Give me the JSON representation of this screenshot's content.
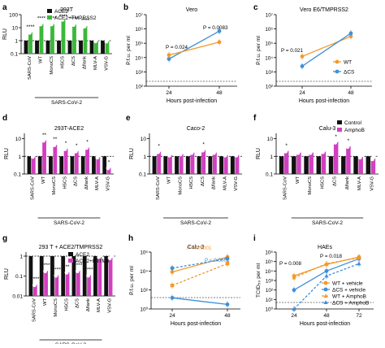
{
  "colors": {
    "green": "#3cb83a",
    "pink": "#d23fc0",
    "orange": "#f39a2b",
    "blue": "#3f8fd8",
    "black": "#111111",
    "white": "#ffffff"
  },
  "chart_data": [
    {
      "id": "a",
      "type": "bar",
      "title": "293T",
      "ylabel": "RLU",
      "scale": "log",
      "ylim": [
        0.1,
        100
      ],
      "yticks": [
        "0.1",
        "1",
        "10",
        "100"
      ],
      "group_label": "SARS-CoV-2",
      "group_range": [
        1,
        6
      ],
      "categories": [
        "SARS-CoV",
        "WT",
        "MonoCS",
        "H5CS",
        "ΔCS",
        "Δflank",
        "MLV-A",
        "VSV-G"
      ],
      "series": [
        {
          "name": "ACE2",
          "values": [
            1,
            1,
            1,
            1,
            1,
            1,
            1,
            1
          ]
        },
        {
          "name": "ACE2+TMPRSS2",
          "values": [
            5,
            22,
            22,
            50,
            20,
            15,
            1.1,
            1.05
          ]
        }
      ],
      "annotations": [
        "****",
        "****",
        "****",
        "****",
        "****",
        "****",
        "",
        ""
      ]
    },
    {
      "id": "b",
      "type": "line",
      "title": "Vero",
      "ylabel": "P.f.u. per ml",
      "xlabel": "Hours post-infection",
      "scale": "log",
      "ylim": [
        100,
        10000000
      ],
      "yticks": [
        "10²",
        "10³",
        "10⁴",
        "10⁵",
        "10⁶",
        "10⁷"
      ],
      "x": [
        24,
        48
      ],
      "series": [
        {
          "values": [
            8000,
            700000
          ]
        },
        {
          "values": [
            15000,
            120000
          ]
        }
      ],
      "pvalues": [
        "P = 0.024",
        "P = 0.0083"
      ]
    },
    {
      "id": "c",
      "type": "line",
      "title": "Vero E6/TMPRSS2",
      "ylabel": "P.f.u. per ml",
      "xlabel": "Hours post-infection",
      "scale": "log",
      "ylim": [
        100,
        10000000
      ],
      "yticks": [
        "10²",
        "10³",
        "10⁴",
        "10⁵",
        "10⁶",
        "10⁷"
      ],
      "x": [
        24,
        48
      ],
      "series": [
        {
          "name": "WT",
          "values": [
            12000,
            300000
          ]
        },
        {
          "name": "ΔCS",
          "values": [
            2500,
            500000
          ]
        }
      ],
      "pvalues": [
        "P = 0.021",
        ""
      ]
    },
    {
      "id": "d",
      "type": "bar",
      "title": "293T-ACE2",
      "ylabel": "RLU",
      "scale": "log",
      "ylim": [
        0.1,
        20
      ],
      "yticks": [
        "0.1",
        "1",
        "10"
      ],
      "group_label": "SARS-CoV-2",
      "group_range": [
        1,
        6
      ],
      "categories": [
        "SARS-CoV",
        "WT",
        "MonoCS",
        "H5CS",
        "ΔCS",
        "Δflank",
        "MLV-A",
        "VSV-G"
      ],
      "series": [
        {
          "values": [
            1,
            1,
            1,
            1,
            1,
            1,
            1,
            1
          ]
        },
        {
          "values": [
            1.1,
            9,
            5,
            3,
            2.2,
            3.5,
            1,
            0.25
          ]
        }
      ],
      "annotations": [
        "",
        "**",
        "**",
        "*",
        "*",
        "*",
        "",
        "*"
      ]
    },
    {
      "id": "e",
      "type": "bar",
      "title": "Caco-2",
      "ylabel": "RLU",
      "scale": "log",
      "ylim": [
        0.1,
        20
      ],
      "yticks": [
        "0.1",
        "1",
        "10"
      ],
      "group_label": "SARS-CoV-2",
      "group_range": [
        1,
        6
      ],
      "categories": [
        "SARS-CoV",
        "WT",
        "MonoCS",
        "H5CS",
        "ΔCS",
        "Δflank",
        "MLV-A",
        "VSV-G"
      ],
      "series": [
        {
          "values": [
            1,
            1,
            1,
            1,
            1,
            1,
            1,
            1
          ]
        },
        {
          "values": [
            2,
            1.3,
            1.5,
            1.8,
            2.5,
            1.8,
            1.3,
            1.3
          ]
        }
      ],
      "annotations": [
        "*",
        "",
        "",
        "",
        "*",
        "",
        "",
        ""
      ]
    },
    {
      "id": "f",
      "type": "bar",
      "title": "Calu-3",
      "ylabel": "RLU",
      "scale": "log",
      "ylim": [
        0.1,
        20
      ],
      "yticks": [
        "0.1",
        "1",
        "10"
      ],
      "group_label": "SARS-CoV-2",
      "group_range": [
        1,
        6
      ],
      "categories": [
        "SARS-CoV",
        "WT",
        "MonoCS",
        "H5CS",
        "ΔCS",
        "Δflank",
        "MLV-A",
        "VSV-G"
      ],
      "series": [
        {
          "name": "Control",
          "values": [
            1,
            1,
            1,
            1,
            1,
            1,
            1,
            1
          ]
        },
        {
          "name": "AmphoB",
          "values": [
            2.2,
            1.8,
            1.8,
            2,
            7,
            4,
            1,
            0.8
          ]
        }
      ],
      "annotations": [
        "*",
        "",
        "",
        "",
        "*",
        "*",
        "",
        ""
      ]
    },
    {
      "id": "g",
      "type": "bar",
      "title": "293 T + ACE2/TMPRSS2",
      "ylabel": "RLU",
      "scale": "log",
      "ylim": [
        0.01,
        1.6
      ],
      "yticks": [
        "0.01",
        "0.1",
        "1"
      ],
      "group_label": "SARS-CoV-2",
      "group_range": [
        1,
        6
      ],
      "categories": [
        "SARS-CoV",
        "WT",
        "MonoCS",
        "H5CS",
        "ΔCS",
        "Δflank",
        "MLV-A",
        "VSV-G"
      ],
      "series": [
        {
          "name": "ACE2",
          "values": [
            1,
            1,
            1,
            1,
            1,
            1,
            1,
            1
          ]
        },
        {
          "name": "ACE2+IFITM3",
          "values": [
            0.04,
            0.2,
            0.12,
            0.17,
            0.2,
            0.12,
            1,
            0.9
          ]
        }
      ],
      "annotations": [
        "****",
        "****",
        "****",
        "**",
        "****",
        "****",
        "",
        ""
      ]
    },
    {
      "id": "h",
      "type": "line",
      "title": "Calu-3",
      "ylabel": "P.f.u. per ml",
      "xlabel": "Hours post-infection",
      "scale": "log",
      "ylim": [
        1,
        1000000
      ],
      "yticks": [
        "10⁰",
        "10²",
        "10⁴",
        "10⁶"
      ],
      "x": [
        24,
        48
      ],
      "series": [
        {
          "values": [
            8000,
            300000
          ]
        },
        {
          "values": [
            300,
            60000
          ]
        },
        {
          "values": [
            20000,
            200000
          ]
        },
        {
          "values": [
            15,
            3
          ]
        }
      ],
      "pvalues": [
        "P < 0.0001",
        "P < 0.0001"
      ]
    },
    {
      "id": "i",
      "type": "line",
      "title": "HAEs",
      "ylabel": "TCID₅₀ per ml",
      "xlabel": "Hours post-infection",
      "scale": "log",
      "ylim": [
        1,
        1000000
      ],
      "yticks": [
        "10⁰",
        "10¹",
        "10²",
        "10³",
        "10⁴",
        "10⁵",
        "10⁶"
      ],
      "x": [
        24,
        48,
        72
      ],
      "series": [
        {
          "name": "WT + vehicle",
          "values": [
            3000,
            50000,
            300000
          ]
        },
        {
          "name": "ΔCS + vehicle",
          "values": [
            100,
            10000,
            200000
          ]
        },
        {
          "name": "WT + AmphoB",
          "values": [
            2000,
            60000,
            250000
          ]
        },
        {
          "name": "ΔCS + AmphoB",
          "values": [
            1,
            3000,
            60000
          ]
        }
      ],
      "pvalues": [
        "P = 0.008",
        "P = 0.018"
      ]
    }
  ]
}
